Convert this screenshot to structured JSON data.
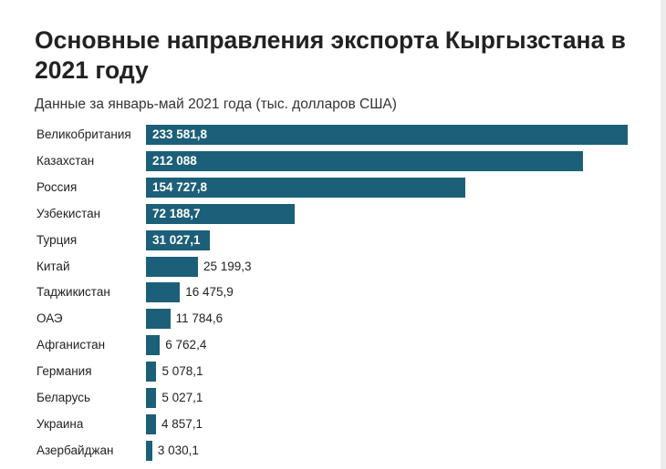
{
  "chart_data": {
    "type": "bar",
    "orientation": "horizontal",
    "title": "Основные направления экспорта Кыргызстана в 2021 году",
    "subtitle": "Данные за январь-май 2021 года (тыс. долларов США)",
    "bar_color": "#1c5f78",
    "categories": [
      "Великобритания",
      "Казахстан",
      "Россия",
      "Узбекистан",
      "Турция",
      "Китай",
      "Таджикистан",
      "ОАЭ",
      "Афганистан",
      "Германия",
      "Беларусь",
      "Украина",
      "Азербайджан"
    ],
    "values": [
      233581.8,
      212088,
      154727.8,
      72188.7,
      31027.1,
      25199.3,
      16475.9,
      11784.6,
      6762.4,
      5078.1,
      5027.1,
      4857.1,
      3030.1
    ],
    "value_labels": [
      "233 581,8",
      "212 088",
      "154 727,8",
      "72 188,7",
      "31 027,1",
      "25 199,3",
      "16 475,9",
      "11 784,6",
      "6 762,4",
      "5 078,1",
      "5 027,1",
      "4 857,1",
      "3 030,1"
    ],
    "xlim": [
      0,
      233581.8
    ]
  }
}
